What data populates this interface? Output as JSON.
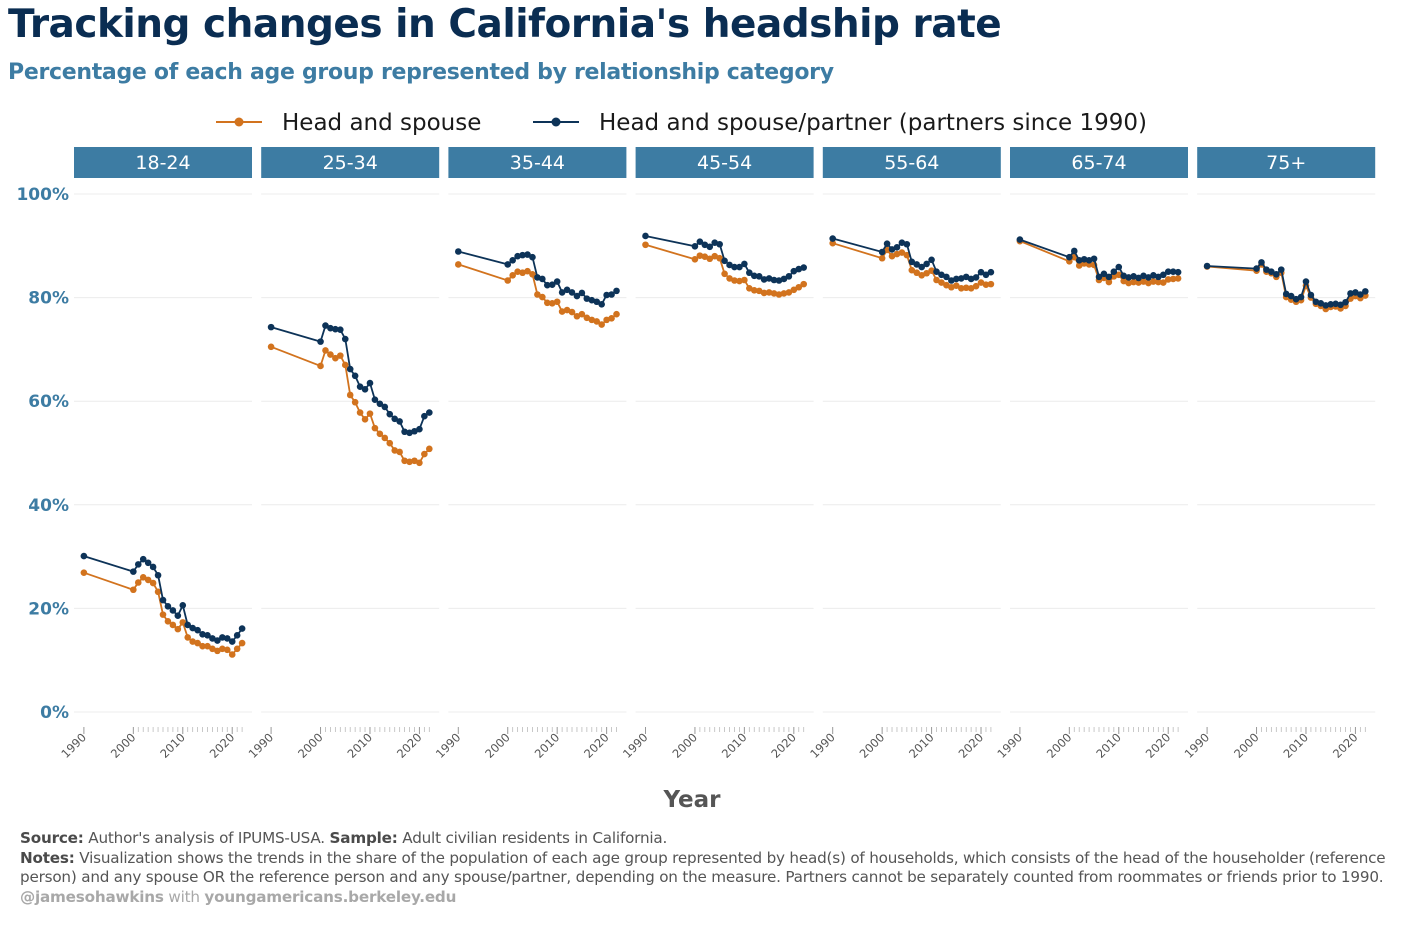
{
  "title": "Tracking changes in California's headship rate",
  "subtitle": "Percentage of each age group represented by relationship category",
  "footer": {
    "source_label": "Source:",
    "source_text": "Author's analysis of IPUMS-USA.",
    "sample_label": "Sample:",
    "sample_text": "Adult civilian residents in California.",
    "notes_label": "Notes:",
    "notes_text": "Visualization shows the trends in the share of the population of each age group represented by head(s) of households, which consists of the head of the householder (reference person) and any spouse OR the reference person and any spouse/partner, depending on the measure. Partners cannot be separately counted from roommates or friends prior to 1990.",
    "credit_handle": "@jamesohawkins",
    "credit_with": "with",
    "credit_site": "youngamericans.berkeley.edu"
  },
  "chart_data": {
    "type": "line",
    "xlabel": "Year",
    "ylabel": "",
    "ylim": [
      0,
      100
    ],
    "y_ticks": [
      0,
      20,
      40,
      60,
      80,
      100
    ],
    "y_tick_labels": [
      "0%",
      "20%",
      "40%",
      "60%",
      "80%",
      "100%"
    ],
    "x_ticks": [
      1990,
      2000,
      2010,
      2020
    ],
    "x_tick_labels": [
      "1990",
      "2000",
      "2010",
      "2020"
    ],
    "xlim": [
      1988,
      2024
    ],
    "grid": true,
    "legend_position": "top",
    "colors": {
      "head_spouse": "#d2731e",
      "head_spouse_partner": "#0d3358",
      "strip": "#3d7ca3",
      "axis_text": "#3d7ca3"
    },
    "years": [
      1990,
      2000,
      2001,
      2002,
      2003,
      2004,
      2005,
      2006,
      2007,
      2008,
      2009,
      2010,
      2011,
      2012,
      2013,
      2014,
      2015,
      2016,
      2017,
      2018,
      2019,
      2020,
      2021,
      2022
    ],
    "series_names": [
      "Head and spouse",
      "Head and spouse/partner (partners since 1990)"
    ],
    "panels": [
      {
        "label": "18-24",
        "head_spouse": [
          26.9,
          23.6,
          25.0,
          26.0,
          25.5,
          24.9,
          23.2,
          18.8,
          17.5,
          16.8,
          16.0,
          17.3,
          14.4,
          13.6,
          13.3,
          12.7,
          12.7,
          12.2,
          11.8,
          12.2,
          12.0,
          11.1,
          12.2,
          13.3
        ],
        "head_spouse_partner": [
          30.1,
          27.1,
          28.5,
          29.5,
          28.8,
          28.0,
          26.4,
          21.6,
          20.4,
          19.6,
          18.6,
          20.6,
          16.8,
          16.2,
          15.8,
          15.0,
          14.8,
          14.2,
          13.8,
          14.4,
          14.2,
          13.6,
          14.8,
          16.1
        ]
      },
      {
        "label": "25-34",
        "head_spouse": [
          70.5,
          66.8,
          69.8,
          69.0,
          68.3,
          68.8,
          67.0,
          61.2,
          59.8,
          57.8,
          56.5,
          57.6,
          54.8,
          53.7,
          52.9,
          51.9,
          50.5,
          50.2,
          48.5,
          48.3,
          48.5,
          48.1,
          49.8,
          50.8
        ],
        "head_spouse_partner": [
          74.3,
          71.5,
          74.6,
          74.1,
          73.9,
          73.8,
          72.0,
          66.2,
          64.9,
          62.8,
          62.3,
          63.5,
          60.3,
          59.5,
          58.9,
          57.5,
          56.6,
          56.1,
          54.1,
          53.9,
          54.2,
          54.6,
          57.1,
          57.8
        ]
      },
      {
        "label": "35-44",
        "head_spouse": [
          86.4,
          83.3,
          84.3,
          85.0,
          84.8,
          85.1,
          84.5,
          80.6,
          80.1,
          79.0,
          78.9,
          79.2,
          77.3,
          77.6,
          77.2,
          76.4,
          76.8,
          76.1,
          75.7,
          75.4,
          74.8,
          75.7,
          76.0,
          76.8
        ],
        "head_spouse_partner": [
          88.9,
          86.4,
          87.2,
          88.0,
          88.2,
          88.3,
          87.8,
          83.9,
          83.6,
          82.4,
          82.5,
          83.1,
          81.0,
          81.5,
          81.0,
          80.3,
          80.9,
          79.8,
          79.5,
          79.2,
          78.7,
          80.5,
          80.6,
          81.3
        ]
      },
      {
        "label": "45-54",
        "head_spouse": [
          90.2,
          87.4,
          88.1,
          87.9,
          87.5,
          88.0,
          87.6,
          84.6,
          83.7,
          83.3,
          83.2,
          83.4,
          81.8,
          81.4,
          81.3,
          80.9,
          81.0,
          80.8,
          80.6,
          80.8,
          81.0,
          81.5,
          82.0,
          82.6
        ],
        "head_spouse_partner": [
          91.9,
          89.9,
          90.8,
          90.2,
          89.8,
          90.6,
          90.3,
          87.1,
          86.3,
          85.9,
          85.9,
          86.5,
          84.8,
          84.2,
          84.1,
          83.5,
          83.7,
          83.4,
          83.3,
          83.6,
          84.1,
          85.1,
          85.5,
          85.8
        ]
      },
      {
        "label": "55-64",
        "head_spouse": [
          90.5,
          87.6,
          89.2,
          88.0,
          88.4,
          88.7,
          88.2,
          85.3,
          84.8,
          84.3,
          84.7,
          85.2,
          83.4,
          82.9,
          82.4,
          82.0,
          82.3,
          81.8,
          81.9,
          81.8,
          82.2,
          82.9,
          82.5,
          82.6
        ],
        "head_spouse_partner": [
          91.4,
          88.8,
          90.4,
          89.3,
          89.7,
          90.6,
          90.3,
          86.9,
          86.4,
          85.9,
          86.5,
          87.3,
          85.0,
          84.4,
          84.0,
          83.3,
          83.6,
          83.7,
          84.0,
          83.6,
          83.9,
          84.9,
          84.4,
          84.9
        ]
      },
      {
        "label": "65-74",
        "head_spouse": [
          90.9,
          87.0,
          87.8,
          86.2,
          86.6,
          86.4,
          86.3,
          83.4,
          83.8,
          83.0,
          84.1,
          84.4,
          83.2,
          82.8,
          83.0,
          82.9,
          83.1,
          82.8,
          83.1,
          83.0,
          82.9,
          83.5,
          83.6,
          83.7
        ],
        "head_spouse_partner": [
          91.2,
          87.8,
          89.0,
          87.2,
          87.4,
          87.2,
          87.5,
          84.0,
          84.6,
          84.0,
          85.0,
          85.9,
          84.2,
          83.9,
          84.1,
          83.8,
          84.2,
          83.9,
          84.3,
          84.0,
          84.4,
          85.0,
          85.0,
          84.9
        ]
      },
      {
        "label": "75+",
        "head_spouse": [
          86.0,
          85.2,
          86.4,
          85.0,
          84.7,
          84.0,
          84.8,
          80.1,
          79.6,
          79.2,
          79.5,
          82.3,
          80.0,
          78.8,
          78.4,
          77.8,
          78.2,
          78.3,
          77.9,
          78.4,
          79.8,
          80.3,
          79.9,
          80.4
        ],
        "head_spouse_partner": [
          86.1,
          85.6,
          86.8,
          85.4,
          85.0,
          84.5,
          85.4,
          80.7,
          80.3,
          79.7,
          80.1,
          83.1,
          80.5,
          79.2,
          78.9,
          78.5,
          78.7,
          78.8,
          78.6,
          79.1,
          80.8,
          81.0,
          80.6,
          81.2
        ]
      }
    ]
  }
}
